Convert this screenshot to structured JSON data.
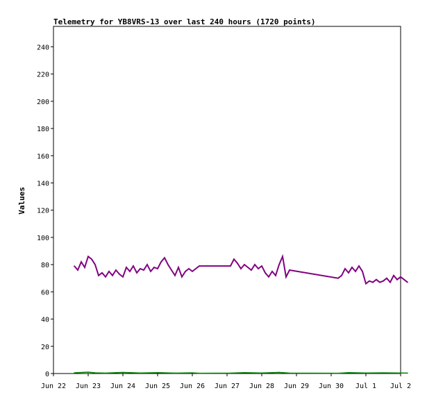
{
  "chart_data": {
    "type": "line",
    "title": "Telemetry for YB8VRS-13 over last 240 hours (1720 points)",
    "ylabel": "Values",
    "xlabel": "",
    "ylim": [
      0,
      255
    ],
    "xlim": [
      "2024-06-22T00:00",
      "2024-07-02T00:00"
    ],
    "y_ticks": [
      0,
      20,
      40,
      60,
      80,
      100,
      120,
      140,
      160,
      180,
      200,
      220,
      240
    ],
    "x_ticks": [
      {
        "t": "2024-06-22T00:00",
        "label": "Jun 22"
      },
      {
        "t": "2024-06-23T00:00",
        "label": "Jun 23"
      },
      {
        "t": "2024-06-24T00:00",
        "label": "Jun 24"
      },
      {
        "t": "2024-06-25T00:00",
        "label": "Jun 25"
      },
      {
        "t": "2024-06-26T00:00",
        "label": "Jun 26"
      },
      {
        "t": "2024-06-27T00:00",
        "label": "Jun 27"
      },
      {
        "t": "2024-06-28T00:00",
        "label": "Jun 28"
      },
      {
        "t": "2024-06-29T00:00",
        "label": "Jun 29"
      },
      {
        "t": "2024-06-30T00:00",
        "label": "Jun 30"
      },
      {
        "t": "2024-07-01T00:00",
        "label": "Jul 1"
      },
      {
        "t": "2024-07-02T00:00",
        "label": "Jul 2"
      }
    ],
    "grid": false,
    "series": [
      {
        "color": "#800080",
        "points": [
          [
            "2024-06-22T14:24",
            79
          ],
          [
            "2024-06-22T16:48",
            76
          ],
          [
            "2024-06-22T19:12",
            82
          ],
          [
            "2024-06-22T21:36",
            78
          ],
          [
            "2024-06-23T00:00",
            86
          ],
          [
            "2024-06-23T02:24",
            84
          ],
          [
            "2024-06-23T04:48",
            80
          ],
          [
            "2024-06-23T07:12",
            72
          ],
          [
            "2024-06-23T09:36",
            74
          ],
          [
            "2024-06-23T12:00",
            71
          ],
          [
            "2024-06-23T14:24",
            75
          ],
          [
            "2024-06-23T16:48",
            72
          ],
          [
            "2024-06-23T19:12",
            76
          ],
          [
            "2024-06-23T21:36",
            73
          ],
          [
            "2024-06-24T00:00",
            71
          ],
          [
            "2024-06-24T02:24",
            78
          ],
          [
            "2024-06-24T04:48",
            75
          ],
          [
            "2024-06-24T07:12",
            79
          ],
          [
            "2024-06-24T09:36",
            74
          ],
          [
            "2024-06-24T12:00",
            77
          ],
          [
            "2024-06-24T14:24",
            76
          ],
          [
            "2024-06-24T16:48",
            80
          ],
          [
            "2024-06-24T19:12",
            75
          ],
          [
            "2024-06-24T21:36",
            78
          ],
          [
            "2024-06-25T00:00",
            77
          ],
          [
            "2024-06-25T02:24",
            82
          ],
          [
            "2024-06-25T04:48",
            85
          ],
          [
            "2024-06-25T07:12",
            80
          ],
          [
            "2024-06-25T09:36",
            76
          ],
          [
            "2024-06-25T12:00",
            72
          ],
          [
            "2024-06-25T14:24",
            78
          ],
          [
            "2024-06-25T16:48",
            71
          ],
          [
            "2024-06-25T19:12",
            75
          ],
          [
            "2024-06-25T21:36",
            77
          ],
          [
            "2024-06-26T00:00",
            75
          ],
          [
            "2024-06-26T04:48",
            79
          ],
          [
            "2024-06-27T02:24",
            79
          ],
          [
            "2024-06-27T04:48",
            84
          ],
          [
            "2024-06-27T07:12",
            81
          ],
          [
            "2024-06-27T09:36",
            77
          ],
          [
            "2024-06-27T12:00",
            80
          ],
          [
            "2024-06-27T14:24",
            78
          ],
          [
            "2024-06-27T16:48",
            76
          ],
          [
            "2024-06-27T19:12",
            80
          ],
          [
            "2024-06-27T21:36",
            77
          ],
          [
            "2024-06-28T00:00",
            79
          ],
          [
            "2024-06-28T02:24",
            74
          ],
          [
            "2024-06-28T04:48",
            71
          ],
          [
            "2024-06-28T07:12",
            75
          ],
          [
            "2024-06-28T09:36",
            72
          ],
          [
            "2024-06-28T12:00",
            80
          ],
          [
            "2024-06-28T14:24",
            86
          ],
          [
            "2024-06-28T16:48",
            71
          ],
          [
            "2024-06-28T19:12",
            76
          ],
          [
            "2024-06-30T04:48",
            70
          ],
          [
            "2024-06-30T07:12",
            72
          ],
          [
            "2024-06-30T09:36",
            77
          ],
          [
            "2024-06-30T12:00",
            74
          ],
          [
            "2024-06-30T14:24",
            78
          ],
          [
            "2024-06-30T16:48",
            75
          ],
          [
            "2024-06-30T19:12",
            79
          ],
          [
            "2024-06-30T21:36",
            75
          ],
          [
            "2024-07-01T00:00",
            66
          ],
          [
            "2024-07-01T02:24",
            68
          ],
          [
            "2024-07-01T04:48",
            67
          ],
          [
            "2024-07-01T07:12",
            69
          ],
          [
            "2024-07-01T09:36",
            67
          ],
          [
            "2024-07-01T12:00",
            68
          ],
          [
            "2024-07-01T14:24",
            70
          ],
          [
            "2024-07-01T16:48",
            67
          ],
          [
            "2024-07-01T19:12",
            72
          ],
          [
            "2024-07-01T21:36",
            69
          ],
          [
            "2024-07-02T00:00",
            71
          ],
          [
            "2024-07-02T02:24",
            69
          ],
          [
            "2024-07-02T04:48",
            67
          ]
        ]
      },
      {
        "color": "#008000",
        "points": [
          [
            "2024-06-22T14:24",
            0.5
          ],
          [
            "2024-06-23T00:00",
            1
          ],
          [
            "2024-06-23T04:48",
            0.5
          ],
          [
            "2024-06-23T12:00",
            0.3
          ],
          [
            "2024-06-24T00:00",
            0.8
          ],
          [
            "2024-06-24T12:00",
            0.4
          ],
          [
            "2024-06-25T00:00",
            0.6
          ],
          [
            "2024-06-25T12:00",
            0.3
          ],
          [
            "2024-06-26T00:00",
            0.5
          ],
          [
            "2024-06-26T04:48",
            0.2
          ],
          [
            "2024-06-27T02:24",
            0.3
          ],
          [
            "2024-06-27T12:00",
            0.6
          ],
          [
            "2024-06-28T00:00",
            0.4
          ],
          [
            "2024-06-28T12:00",
            0.8
          ],
          [
            "2024-06-28T19:12",
            0.3
          ],
          [
            "2024-06-30T04:48",
            0.2
          ],
          [
            "2024-06-30T12:00",
            0.6
          ],
          [
            "2024-07-01T00:00",
            0.4
          ],
          [
            "2024-07-01T12:00",
            0.5
          ],
          [
            "2024-07-02T04:48",
            0.3
          ]
        ]
      }
    ]
  }
}
